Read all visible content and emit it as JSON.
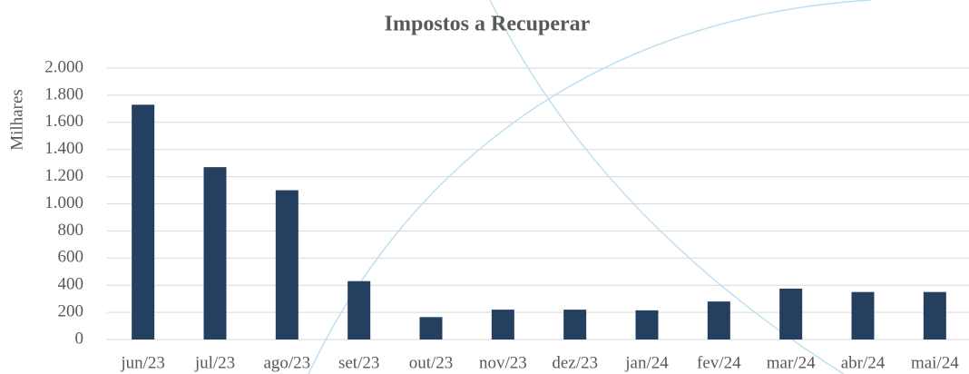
{
  "chart_data": {
    "type": "bar",
    "title": "Impostos a Recuperar",
    "y_label": "Milhares",
    "categories": [
      "jun/23",
      "jul/23",
      "ago/23",
      "set/23",
      "out/23",
      "nov/23",
      "dez/23",
      "jan/24",
      "fev/24",
      "mar/24",
      "abr/24",
      "mai/24"
    ],
    "values": [
      1730,
      1270,
      1100,
      430,
      165,
      220,
      220,
      215,
      280,
      375,
      350,
      350
    ],
    "color": "#243f60",
    "ylim": [
      0,
      2000
    ],
    "yticks": [
      0,
      200,
      400,
      600,
      800,
      {
        "value": 1000,
        "label": "1.000"
      },
      {
        "value": 1200,
        "label": "1.200"
      },
      {
        "value": 1400,
        "label": "1.400"
      },
      {
        "value": 1600,
        "label": "1.600"
      },
      {
        "value": 1800,
        "label": "1.800"
      },
      {
        "value": 2000,
        "label": "2.000"
      }
    ],
    "grid": true
  }
}
